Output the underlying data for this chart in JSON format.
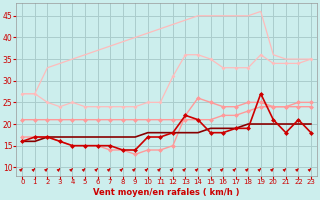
{
  "x": [
    0,
    1,
    2,
    3,
    4,
    5,
    6,
    7,
    8,
    9,
    10,
    11,
    12,
    13,
    14,
    15,
    16,
    17,
    18,
    19,
    20,
    21,
    22,
    23
  ],
  "series": [
    {
      "name": "upper_envelope_top",
      "color": "#ffbbbb",
      "linewidth": 0.9,
      "marker": null,
      "markersize": 0,
      "y": [
        27,
        27,
        33,
        34,
        35,
        36,
        37,
        38,
        39,
        40,
        41,
        42,
        43,
        44,
        45,
        45,
        45,
        45,
        45,
        46,
        36,
        35,
        35,
        35
      ]
    },
    {
      "name": "upper_envelope_bottom",
      "color": "#ffbbbb",
      "linewidth": 0.9,
      "marker": "D",
      "markersize": 2.0,
      "y": [
        27,
        27,
        25,
        24,
        25,
        24,
        24,
        24,
        24,
        24,
        25,
        25,
        31,
        36,
        36,
        35,
        33,
        33,
        33,
        36,
        34,
        34,
        34,
        35
      ]
    },
    {
      "name": "mid_upper",
      "color": "#ff9999",
      "linewidth": 1.0,
      "marker": "D",
      "markersize": 2.5,
      "y": [
        17,
        17,
        17,
        16,
        15,
        15,
        15,
        14,
        14,
        13,
        14,
        14,
        15,
        22,
        26,
        25,
        24,
        24,
        25,
        25,
        24,
        24,
        25,
        25
      ]
    },
    {
      "name": "mid_lower",
      "color": "#ff9999",
      "linewidth": 1.0,
      "marker": "D",
      "markersize": 2.5,
      "y": [
        21,
        21,
        21,
        21,
        21,
        21,
        21,
        21,
        21,
        21,
        21,
        21,
        21,
        21,
        21,
        21,
        22,
        22,
        23,
        24,
        24,
        24,
        24,
        24
      ]
    },
    {
      "name": "wind_red",
      "color": "#cc0000",
      "linewidth": 1.2,
      "marker": "D",
      "markersize": 2.5,
      "y": [
        16,
        17,
        17,
        16,
        15,
        15,
        15,
        15,
        14,
        14,
        17,
        17,
        18,
        22,
        21,
        18,
        18,
        19,
        19,
        27,
        21,
        18,
        21,
        18
      ]
    },
    {
      "name": "wind_dark",
      "color": "#880000",
      "linewidth": 1.2,
      "marker": null,
      "markersize": 0,
      "y": [
        16,
        16,
        17,
        17,
        17,
        17,
        17,
        17,
        17,
        17,
        18,
        18,
        18,
        18,
        18,
        19,
        19,
        19,
        20,
        20,
        20,
        20,
        20,
        20
      ]
    }
  ],
  "xlabel": "Vent moyen/en rafales ( km/h )",
  "xlim": [
    -0.5,
    23.5
  ],
  "ylim": [
    8,
    48
  ],
  "yticks": [
    10,
    15,
    20,
    25,
    30,
    35,
    40,
    45
  ],
  "xticks": [
    0,
    1,
    2,
    3,
    4,
    5,
    6,
    7,
    8,
    9,
    10,
    11,
    12,
    13,
    14,
    15,
    16,
    17,
    18,
    19,
    20,
    21,
    22,
    23
  ],
  "bg_color": "#cceeed",
  "grid_color": "#aacccc",
  "tick_color": "#cc0000",
  "xlabel_color": "#cc0000"
}
